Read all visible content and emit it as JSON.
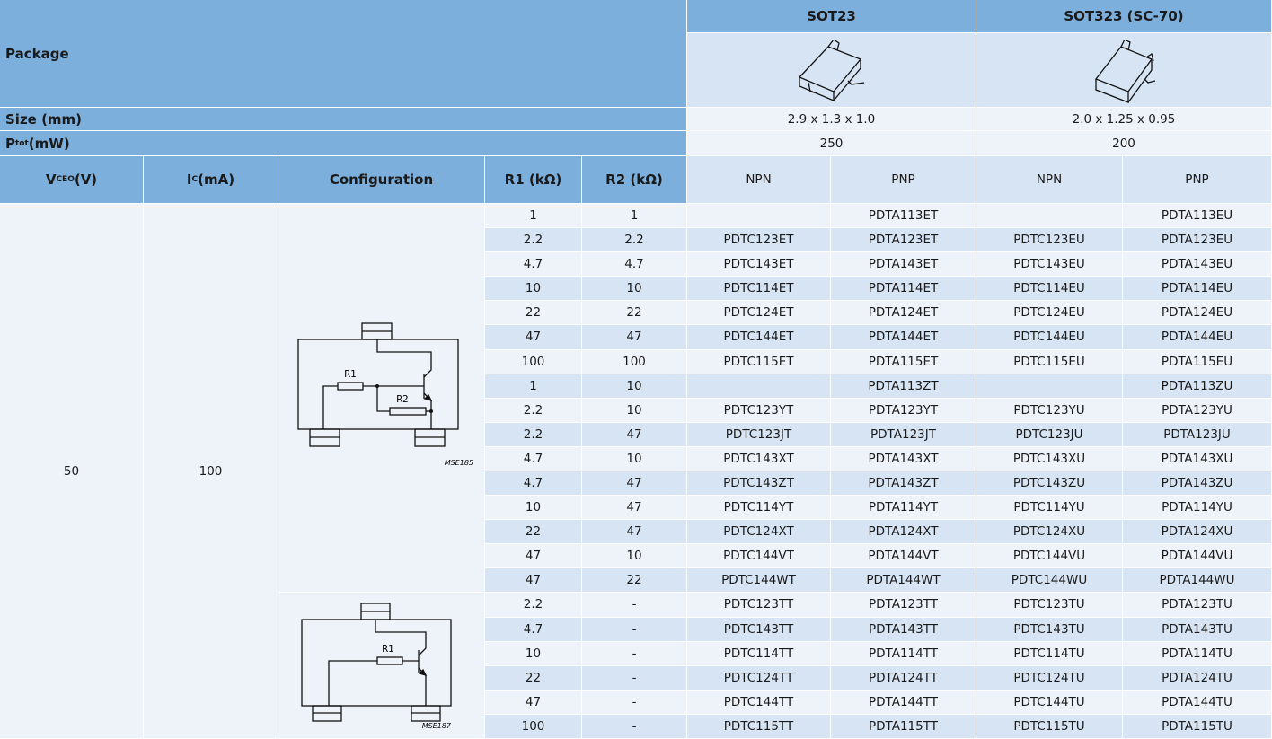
{
  "header": {
    "package": "Package",
    "sot23": "SOT23",
    "sot323": "SOT323 (SC-70)"
  },
  "size": {
    "label": "Size (mm)",
    "sot23": "2.9 x 1.3 x 1.0",
    "sot323": "2.0 x 1.25 x 0.95"
  },
  "ptot": {
    "label": {
      "main": "P",
      "sub": "tot",
      "rest": " (mW)"
    },
    "sot23": "250",
    "sot323": "200"
  },
  "columns": [
    {
      "main": "V",
      "sub": "CEO",
      "rest": " (V)"
    },
    {
      "main": "I",
      "sub": "C",
      "rest": " (mA)"
    },
    "Configuration",
    "R1 (kΩ)",
    "R2 (kΩ)",
    "NPN",
    "PNP",
    "NPN",
    "PNP"
  ],
  "vceo": "50",
  "ic": "100",
  "diagrams": [
    {
      "r1": "R1",
      "r2": "R2",
      "code": "MSE185"
    },
    {
      "r1": "R1",
      "code": "MSE187"
    }
  ],
  "rows": [
    [
      "1",
      "1",
      null,
      "PDTA113ET",
      null,
      "PDTA113EU"
    ],
    [
      "2.2",
      "2.2",
      "PDTC123ET",
      "PDTA123ET",
      "PDTC123EU",
      "PDTA123EU"
    ],
    [
      "4.7",
      "4.7",
      "PDTC143ET",
      "PDTA143ET",
      "PDTC143EU",
      "PDTA143EU"
    ],
    [
      "10",
      "10",
      "PDTC114ET",
      "PDTA114ET",
      "PDTC114EU",
      "PDTA114EU"
    ],
    [
      "22",
      "22",
      "PDTC124ET",
      "PDTA124ET",
      "PDTC124EU",
      "PDTA124EU"
    ],
    [
      "47",
      "47",
      "PDTC144ET",
      "PDTA144ET",
      "PDTC144EU",
      "PDTA144EU"
    ],
    [
      "100",
      "100",
      "PDTC115ET",
      "PDTA115ET",
      "PDTC115EU",
      "PDTA115EU"
    ],
    [
      "1",
      "10",
      null,
      "PDTA113ZT",
      null,
      "PDTA113ZU"
    ],
    [
      "2.2",
      "10",
      "PDTC123YT",
      "PDTA123YT",
      "PDTC123YU",
      "PDTA123YU"
    ],
    [
      "2.2",
      "47",
      "PDTC123JT",
      "PDTA123JT",
      "PDTC123JU",
      "PDTA123JU"
    ],
    [
      "4.7",
      "10",
      "PDTC143XT",
      "PDTA143XT",
      "PDTC143XU",
      "PDTA143XU"
    ],
    [
      "4.7",
      "47",
      "PDTC143ZT",
      "PDTA143ZT",
      "PDTC143ZU",
      "PDTA143ZU"
    ],
    [
      "10",
      "47",
      "PDTC114YT",
      "PDTA114YT",
      "PDTC114YU",
      "PDTA114YU"
    ],
    [
      "22",
      "47",
      "PDTC124XT",
      "PDTA124XT",
      "PDTC124XU",
      "PDTA124XU"
    ],
    [
      "47",
      "10",
      "PDTC144VT",
      "PDTA144VT",
      "PDTC144VU",
      "PDTA144VU"
    ],
    [
      "47",
      "22",
      "PDTC144WT",
      "PDTA144WT",
      "PDTC144WU",
      "PDTA144WU"
    ],
    [
      "2.2",
      "-",
      "PDTC123TT",
      "PDTA123TT",
      "PDTC123TU",
      "PDTA123TU"
    ],
    [
      "4.7",
      "-",
      "PDTC143TT",
      "PDTA143TT",
      "PDTC143TU",
      "PDTA143TU"
    ],
    [
      "10",
      "-",
      "PDTC114TT",
      "PDTA114TT",
      "PDTC114TU",
      "PDTA114TU"
    ],
    [
      "22",
      "-",
      "PDTC124TT",
      "PDTA124TT",
      "PDTC124TU",
      "PDTA124TU"
    ],
    [
      "47",
      "-",
      "PDTC144TT",
      "PDTA144TT",
      "PDTC144TU",
      "PDTA144TU"
    ],
    [
      "100",
      "-",
      "PDTC115TT",
      "PDTA115TT",
      "PDTC115TU",
      "PDTA115TU"
    ]
  ]
}
